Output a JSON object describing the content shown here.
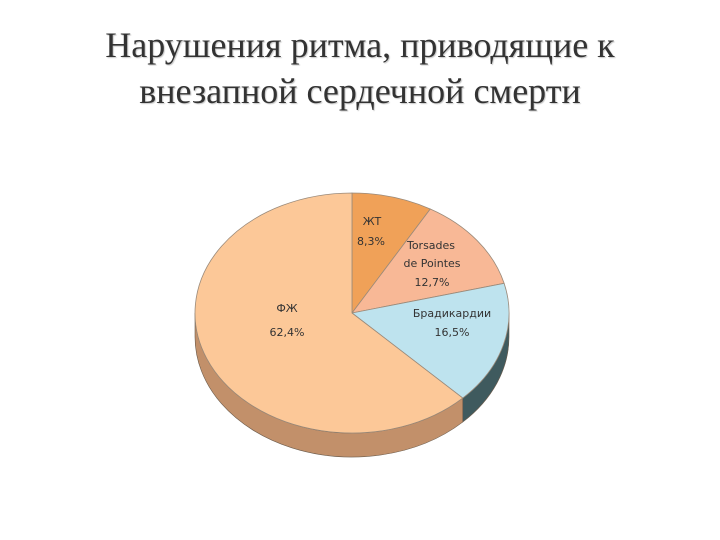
{
  "title": {
    "line1": "Нарушения ритма, приводящие к",
    "line2": "внезапной сердечной смерти"
  },
  "chart_data": {
    "type": "pie",
    "title": "",
    "slices": [
      {
        "label": "ЖТ",
        "value_label": "8,3%",
        "value": 8.3,
        "color": "#F0A158",
        "side": "#B06A28"
      },
      {
        "label": "Torsades de Pointes",
        "value_label": "12,7%",
        "value": 12.7,
        "color": "#F8B896",
        "side": "#B87E5E"
      },
      {
        "label": "Брадикардии",
        "value_label": "16,5%",
        "value": 16.5,
        "color": "#BEE3EE",
        "side": "#3F5A5E"
      },
      {
        "label": "ФЖ",
        "value_label": "62,4%",
        "value": 62.4,
        "color": "#FCC898",
        "side": "#C2906A"
      }
    ],
    "legend": "none"
  }
}
